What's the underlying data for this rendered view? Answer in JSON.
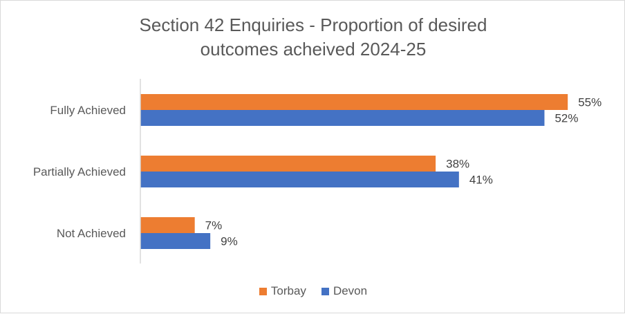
{
  "chart_data": {
    "type": "bar",
    "orientation": "horizontal",
    "title": "Section 42 Enquiries - Proportion of desired outcomes acheived 2024-25",
    "title_lines": [
      "Section 42 Enquiries - Proportion of desired",
      "outcomes acheived 2024-25"
    ],
    "categories": [
      "Fully Achieved",
      "Partially Achieved",
      "Not Achieved"
    ],
    "series": [
      {
        "name": "Torbay",
        "color": "#ED7D31",
        "values": [
          55,
          38,
          7
        ],
        "labels": [
          "55%",
          "38%",
          "7%"
        ]
      },
      {
        "name": "Devon",
        "color": "#4472C4",
        "values": [
          52,
          41,
          9
        ],
        "labels": [
          "52%",
          "41%",
          "9%"
        ]
      }
    ],
    "unit": "%",
    "grid": false,
    "legend": "bottom"
  }
}
